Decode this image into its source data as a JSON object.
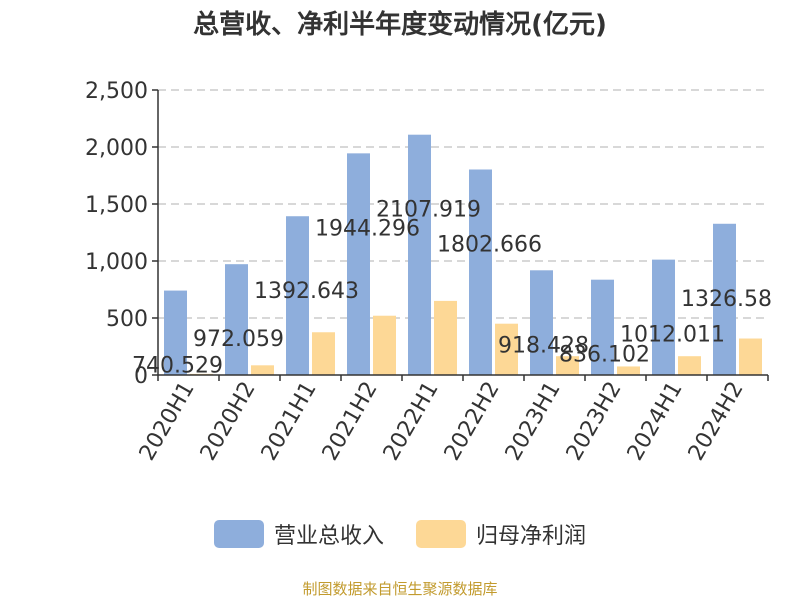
{
  "title": "总营收、净利半年度变动情况(亿元)",
  "colors": {
    "revenue": "#8eaedc",
    "profit": "#fdd896",
    "grid": "#cccccc",
    "axis": "#333333",
    "source": "#c29b2e"
  },
  "source": "制图数据来自恒生聚源数据库",
  "chart_data": {
    "type": "bar",
    "title": "总营收、净利半年度变动情况(亿元)",
    "categories": [
      "2020H1",
      "2020H2",
      "2021H1",
      "2021H2",
      "2022H1",
      "2022H2",
      "2023H1",
      "2023H2",
      "2024H1",
      "2024H2"
    ],
    "ylim": [
      0,
      2500
    ],
    "yticks": [
      0,
      500,
      1000,
      1500,
      2000,
      2500
    ],
    "ytick_labels": [
      "0",
      "500",
      "1,000",
      "1,500",
      "2,000",
      "2,500"
    ],
    "grid": true,
    "legend_position": "bottom",
    "series": [
      {
        "name": "营业总收入",
        "values": [
          740.529,
          972.059,
          1392.643,
          1944.296,
          2107.919,
          1802.666,
          918.428,
          836.102,
          1012.011,
          1326.58
        ],
        "labels": [
          "740.529",
          "972.059",
          "1392.643",
          "1944.296",
          "2107.919",
          "1802.666",
          "918.428",
          "836.102",
          "1012.011",
          "1326.58"
        ]
      },
      {
        "name": "归母净利润",
        "values": [
          10,
          85,
          375,
          520,
          650,
          450,
          165,
          75,
          165,
          320
        ]
      }
    ]
  }
}
